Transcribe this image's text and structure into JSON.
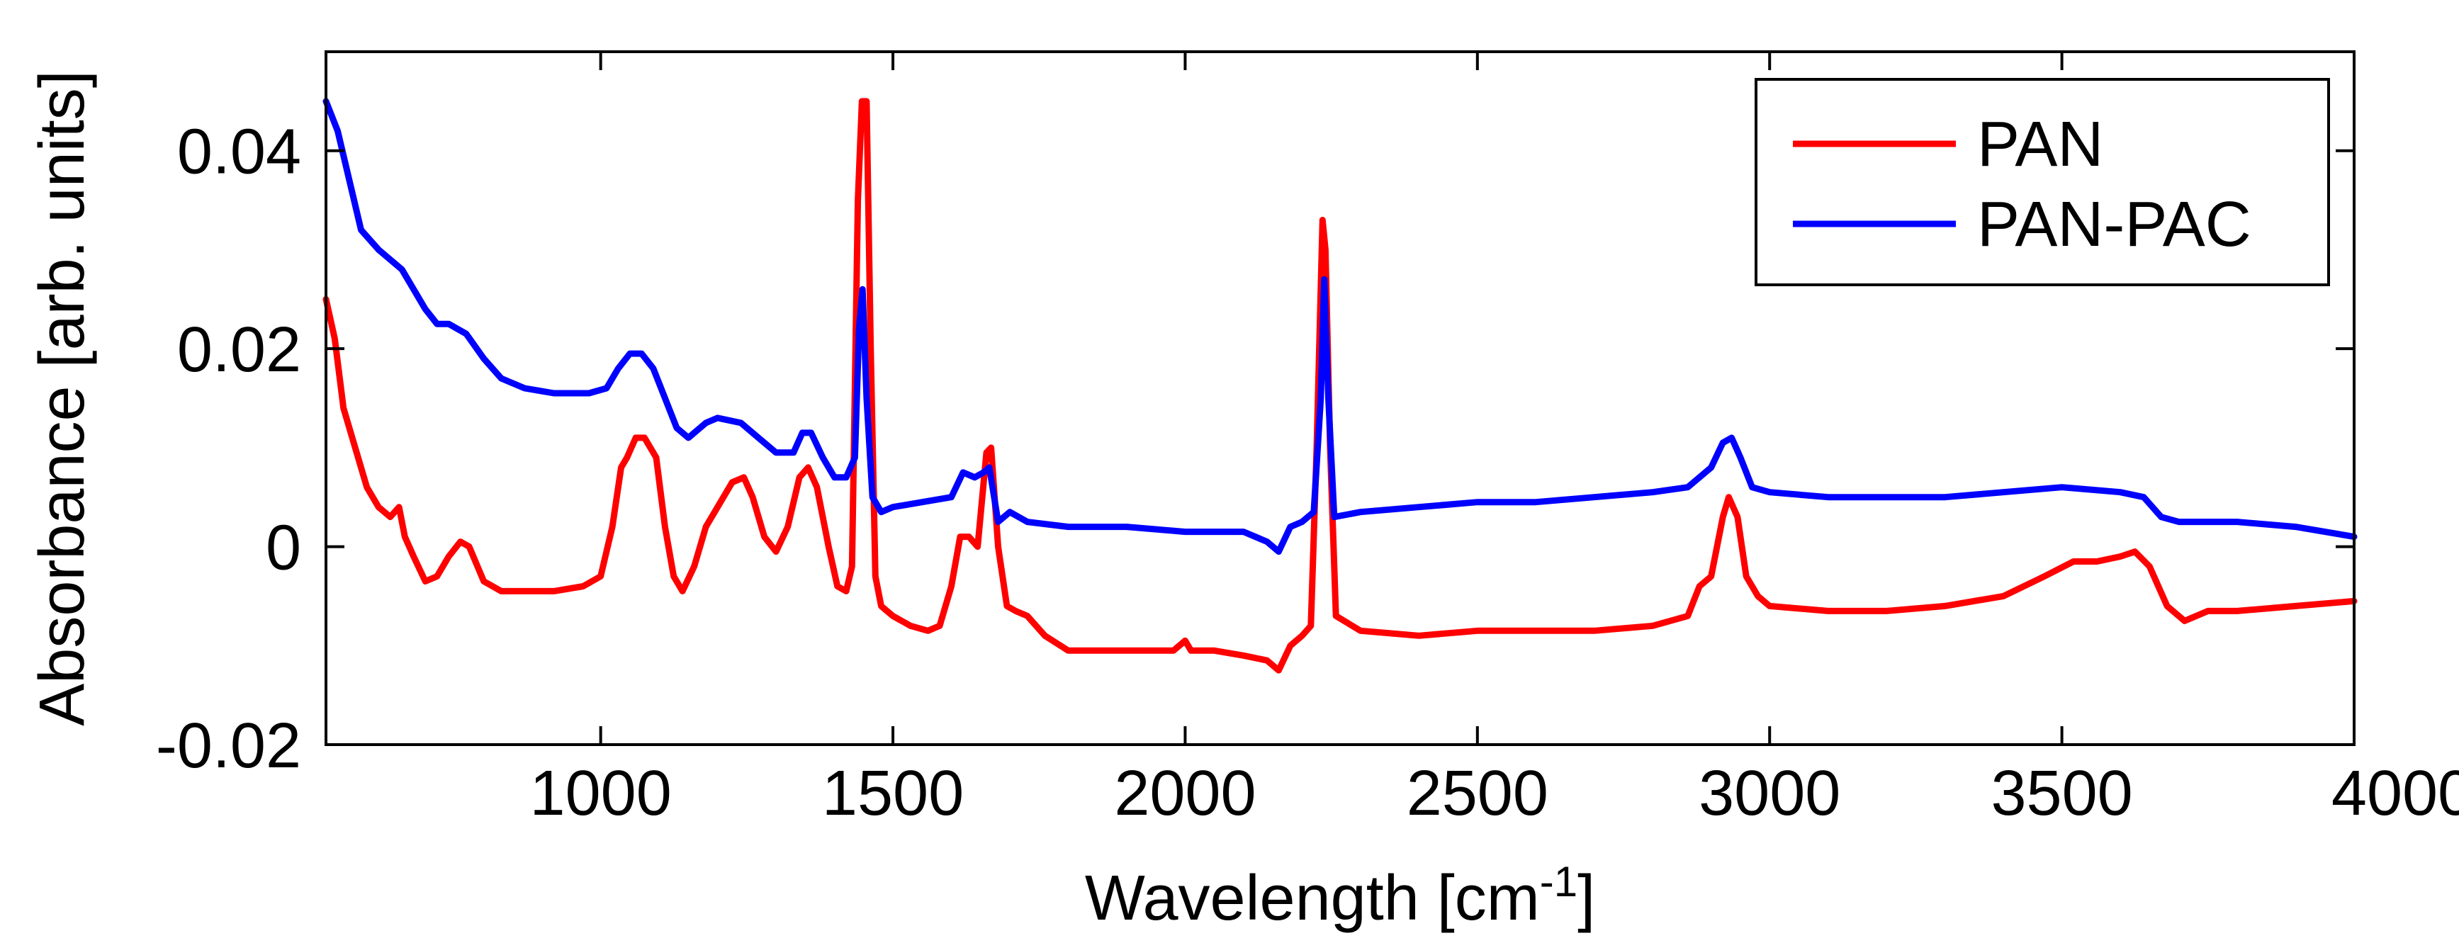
{
  "chart_data": {
    "type": "line",
    "title": "",
    "xlabel": "Wavelength [cm",
    "xlabel_superscript": "-1",
    "xlabel_suffix": "]",
    "ylabel": "Absorbance [arb. units]",
    "xlim": [
      530,
      4000
    ],
    "ylim": [
      -0.02,
      0.05
    ],
    "xticks": [
      1000,
      1500,
      2000,
      2500,
      3000,
      3500,
      4000
    ],
    "yticks": [
      -0.02,
      0,
      0.02,
      0.04
    ],
    "xtick_labels": [
      "1000",
      "1500",
      "2000",
      "2500",
      "3000",
      "3500",
      "4000"
    ],
    "ytick_labels": [
      "-0.02",
      "0",
      "0.02",
      "0.04"
    ],
    "grid": false,
    "legend_position": "top-right",
    "series": [
      {
        "name": "PAN",
        "color": "#ff0000",
        "points": [
          [
            530,
            0.025
          ],
          [
            545,
            0.021
          ],
          [
            560,
            0.014
          ],
          [
            580,
            0.01
          ],
          [
            600,
            0.006
          ],
          [
            620,
            0.004
          ],
          [
            640,
            0.003
          ],
          [
            655,
            0.004
          ],
          [
            665,
            0.001
          ],
          [
            680,
            -0.001
          ],
          [
            700,
            -0.0035
          ],
          [
            720,
            -0.003
          ],
          [
            740,
            -0.001
          ],
          [
            760,
            0.0005
          ],
          [
            775,
            0.0
          ],
          [
            800,
            -0.0035
          ],
          [
            830,
            -0.0045
          ],
          [
            870,
            -0.0045
          ],
          [
            920,
            -0.0045
          ],
          [
            970,
            -0.004
          ],
          [
            1000,
            -0.003
          ],
          [
            1020,
            0.002
          ],
          [
            1035,
            0.008
          ],
          [
            1045,
            0.009
          ],
          [
            1060,
            0.011
          ],
          [
            1075,
            0.011
          ],
          [
            1095,
            0.009
          ],
          [
            1110,
            0.002
          ],
          [
            1125,
            -0.003
          ],
          [
            1140,
            -0.0045
          ],
          [
            1160,
            -0.002
          ],
          [
            1180,
            0.002
          ],
          [
            1200,
            0.004
          ],
          [
            1225,
            0.0065
          ],
          [
            1245,
            0.007
          ],
          [
            1260,
            0.005
          ],
          [
            1280,
            0.001
          ],
          [
            1300,
            -0.0005
          ],
          [
            1320,
            0.002
          ],
          [
            1340,
            0.007
          ],
          [
            1355,
            0.008
          ],
          [
            1370,
            0.006
          ],
          [
            1390,
            0.0
          ],
          [
            1405,
            -0.004
          ],
          [
            1420,
            -0.0045
          ],
          [
            1430,
            -0.002
          ],
          [
            1440,
            0.035
          ],
          [
            1447,
            0.045
          ],
          [
            1455,
            0.045
          ],
          [
            1462,
            0.02
          ],
          [
            1470,
            -0.003
          ],
          [
            1480,
            -0.006
          ],
          [
            1500,
            -0.007
          ],
          [
            1530,
            -0.008
          ],
          [
            1560,
            -0.0085
          ],
          [
            1580,
            -0.008
          ],
          [
            1600,
            -0.004
          ],
          [
            1615,
            0.001
          ],
          [
            1630,
            0.001
          ],
          [
            1645,
            0.0
          ],
          [
            1660,
            0.0095
          ],
          [
            1668,
            0.01
          ],
          [
            1680,
            0.0
          ],
          [
            1695,
            -0.006
          ],
          [
            1710,
            -0.0065
          ],
          [
            1730,
            -0.007
          ],
          [
            1760,
            -0.009
          ],
          [
            1800,
            -0.0105
          ],
          [
            1900,
            -0.0105
          ],
          [
            1980,
            -0.0105
          ],
          [
            2000,
            -0.0095
          ],
          [
            2010,
            -0.0105
          ],
          [
            2050,
            -0.0105
          ],
          [
            2100,
            -0.011
          ],
          [
            2140,
            -0.0115
          ],
          [
            2160,
            -0.0125
          ],
          [
            2180,
            -0.01
          ],
          [
            2200,
            -0.009
          ],
          [
            2215,
            -0.008
          ],
          [
            2225,
            0.01
          ],
          [
            2235,
            0.033
          ],
          [
            2240,
            0.03
          ],
          [
            2248,
            0.01
          ],
          [
            2258,
            -0.007
          ],
          [
            2300,
            -0.0085
          ],
          [
            2400,
            -0.009
          ],
          [
            2500,
            -0.0085
          ],
          [
            2600,
            -0.0085
          ],
          [
            2700,
            -0.0085
          ],
          [
            2800,
            -0.008
          ],
          [
            2860,
            -0.007
          ],
          [
            2880,
            -0.004
          ],
          [
            2900,
            -0.003
          ],
          [
            2920,
            0.003
          ],
          [
            2930,
            0.005
          ],
          [
            2945,
            0.003
          ],
          [
            2960,
            -0.003
          ],
          [
            2980,
            -0.005
          ],
          [
            3000,
            -0.006
          ],
          [
            3100,
            -0.0065
          ],
          [
            3200,
            -0.0065
          ],
          [
            3300,
            -0.006
          ],
          [
            3400,
            -0.005
          ],
          [
            3470,
            -0.003
          ],
          [
            3520,
            -0.0015
          ],
          [
            3560,
            -0.0015
          ],
          [
            3600,
            -0.001
          ],
          [
            3625,
            -0.0005
          ],
          [
            3650,
            -0.002
          ],
          [
            3680,
            -0.006
          ],
          [
            3710,
            -0.0075
          ],
          [
            3750,
            -0.0065
          ],
          [
            3800,
            -0.0065
          ],
          [
            3900,
            -0.006
          ],
          [
            4000,
            -0.0055
          ]
        ]
      },
      {
        "name": "PAN-PAC",
        "color": "#0000ff",
        "points": [
          [
            530,
            0.045
          ],
          [
            550,
            0.042
          ],
          [
            570,
            0.037
          ],
          [
            590,
            0.032
          ],
          [
            620,
            0.03
          ],
          [
            660,
            0.028
          ],
          [
            700,
            0.024
          ],
          [
            720,
            0.0225
          ],
          [
            740,
            0.0225
          ],
          [
            770,
            0.0215
          ],
          [
            800,
            0.019
          ],
          [
            830,
            0.017
          ],
          [
            870,
            0.016
          ],
          [
            920,
            0.0155
          ],
          [
            980,
            0.0155
          ],
          [
            1010,
            0.016
          ],
          [
            1030,
            0.018
          ],
          [
            1050,
            0.0195
          ],
          [
            1070,
            0.0195
          ],
          [
            1090,
            0.018
          ],
          [
            1110,
            0.015
          ],
          [
            1130,
            0.012
          ],
          [
            1150,
            0.011
          ],
          [
            1180,
            0.0125
          ],
          [
            1200,
            0.013
          ],
          [
            1240,
            0.0125
          ],
          [
            1270,
            0.011
          ],
          [
            1300,
            0.0095
          ],
          [
            1330,
            0.0095
          ],
          [
            1345,
            0.0115
          ],
          [
            1360,
            0.0115
          ],
          [
            1380,
            0.009
          ],
          [
            1400,
            0.007
          ],
          [
            1420,
            0.007
          ],
          [
            1435,
            0.009
          ],
          [
            1442,
            0.022
          ],
          [
            1448,
            0.026
          ],
          [
            1455,
            0.015
          ],
          [
            1465,
            0.005
          ],
          [
            1480,
            0.0035
          ],
          [
            1500,
            0.004
          ],
          [
            1550,
            0.0045
          ],
          [
            1600,
            0.005
          ],
          [
            1620,
            0.0075
          ],
          [
            1640,
            0.007
          ],
          [
            1655,
            0.0075
          ],
          [
            1665,
            0.008
          ],
          [
            1680,
            0.0025
          ],
          [
            1700,
            0.0035
          ],
          [
            1730,
            0.0025
          ],
          [
            1800,
            0.002
          ],
          [
            1900,
            0.002
          ],
          [
            2000,
            0.0015
          ],
          [
            2050,
            0.0015
          ],
          [
            2100,
            0.0015
          ],
          [
            2140,
            0.0005
          ],
          [
            2160,
            -0.0005
          ],
          [
            2180,
            0.002
          ],
          [
            2200,
            0.0025
          ],
          [
            2220,
            0.0035
          ],
          [
            2232,
            0.015
          ],
          [
            2238,
            0.027
          ],
          [
            2245,
            0.015
          ],
          [
            2255,
            0.003
          ],
          [
            2300,
            0.0035
          ],
          [
            2400,
            0.004
          ],
          [
            2500,
            0.0045
          ],
          [
            2600,
            0.0045
          ],
          [
            2700,
            0.005
          ],
          [
            2800,
            0.0055
          ],
          [
            2860,
            0.006
          ],
          [
            2900,
            0.008
          ],
          [
            2920,
            0.0105
          ],
          [
            2935,
            0.011
          ],
          [
            2950,
            0.009
          ],
          [
            2970,
            0.006
          ],
          [
            3000,
            0.0055
          ],
          [
            3100,
            0.005
          ],
          [
            3200,
            0.005
          ],
          [
            3300,
            0.005
          ],
          [
            3400,
            0.0055
          ],
          [
            3500,
            0.006
          ],
          [
            3600,
            0.0055
          ],
          [
            3640,
            0.005
          ],
          [
            3670,
            0.003
          ],
          [
            3700,
            0.0025
          ],
          [
            3800,
            0.0025
          ],
          [
            3900,
            0.002
          ],
          [
            3950,
            0.0015
          ],
          [
            4000,
            0.001
          ]
        ]
      }
    ]
  }
}
